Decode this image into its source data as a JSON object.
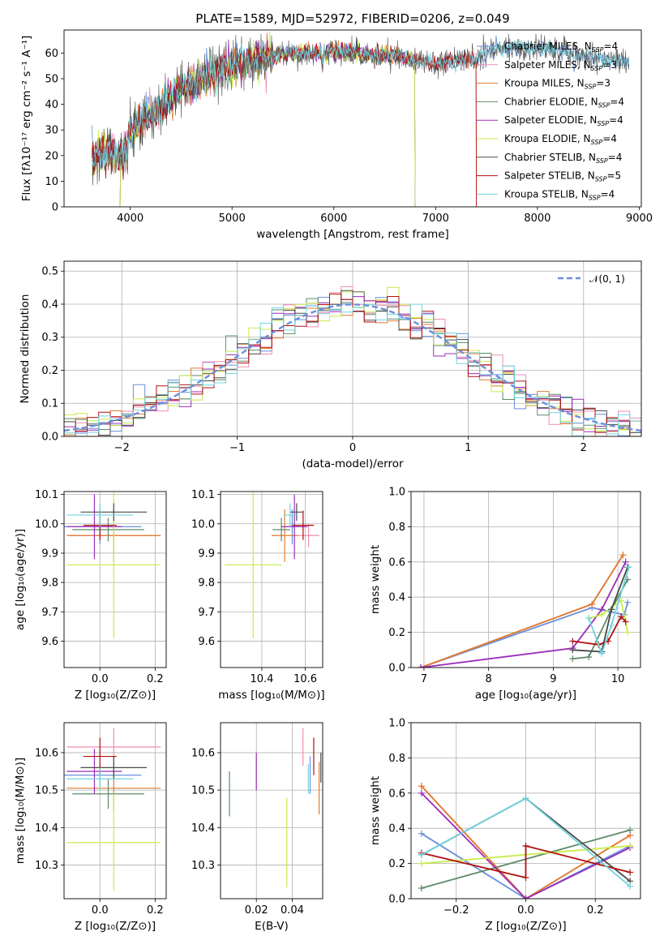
{
  "colors": {
    "chabrier_miles": "#6a8fdc",
    "salpeter_miles": "#f08cb4",
    "kroupa_miles": "#e07c2e",
    "chabrier_elodie": "#5e8a68",
    "salpeter_elodie": "#9b2cb8",
    "kroupa_elodie": "#c8ec4a",
    "chabrier_stelib": "#4a4a4a",
    "salpeter_stelib": "#b01010",
    "kroupa_stelib": "#70d4e0",
    "gaussian": "#6a8fdc"
  },
  "chart_data": [
    {
      "id": "spectrum",
      "type": "line",
      "title": "PLATE=1589, MJD=52972, FIBERID=0206, z=0.049",
      "xlabel": "wavelength [Angstrom, rest frame]",
      "ylabel": "Flux [fλ10⁻¹⁷ erg cm⁻² s⁻¹ A⁻¹]",
      "xlim": [
        3350,
        9020
      ],
      "ylim": [
        0,
        69
      ],
      "xticks": [
        "4000",
        "5000",
        "6000",
        "7000",
        "8000",
        "9000"
      ],
      "yticks": [
        "0",
        "10",
        "20",
        "30",
        "40",
        "50",
        "60"
      ],
      "continuum": {
        "x": [
          3620,
          3700,
          3800,
          3900,
          4000,
          4100,
          4200,
          4300,
          4400,
          4500,
          4600,
          4700,
          4800,
          4900,
          5000,
          5100,
          5200,
          5300,
          5400,
          5600,
          5800,
          6000,
          6200,
          6400,
          6600,
          6800,
          7000,
          7200,
          7400,
          7600,
          7800,
          8000,
          8200,
          8400,
          8600,
          8800
        ],
        "y": [
          18,
          21,
          23,
          19,
          29,
          33,
          36,
          38,
          42,
          46,
          47,
          49,
          52,
          54,
          55,
          56,
          57,
          58,
          59,
          60,
          60,
          61,
          60,
          59,
          59,
          57,
          56,
          57,
          58,
          62,
          62,
          62,
          61,
          59,
          58,
          57
        ]
      },
      "legend": [
        {
          "label": "Chabrier MILES, N",
          "sub": "SSP",
          "n": "=4",
          "color_key": "chabrier_miles"
        },
        {
          "label": "Salpeter MILES, N",
          "sub": "SSP",
          "n": "=3",
          "color_key": "salpeter_miles"
        },
        {
          "label": "Kroupa MILES, N",
          "sub": "SSP",
          "n": "=3",
          "color_key": "kroupa_miles"
        },
        {
          "label": "Chabrier ELODIE, N",
          "sub": "SSP",
          "n": "=4",
          "color_key": "chabrier_elodie"
        },
        {
          "label": "Salpeter ELODIE, N",
          "sub": "SSP",
          "n": "=4",
          "color_key": "salpeter_elodie"
        },
        {
          "label": "Kroupa ELODIE, N",
          "sub": "SSP",
          "n": "=4",
          "color_key": "kroupa_elodie"
        },
        {
          "label": "Chabrier STELIB, N",
          "sub": "SSP",
          "n": "=4",
          "color_key": "chabrier_stelib"
        },
        {
          "label": "Salpeter STELIB, N",
          "sub": "SSP",
          "n": "=5",
          "color_key": "salpeter_stelib"
        },
        {
          "label": "Kroupa STELIB, N",
          "sub": "SSP",
          "n": "=4",
          "color_key": "kroupa_stelib"
        }
      ]
    },
    {
      "id": "residuals",
      "type": "line",
      "xlabel": "(data-model)/error",
      "ylabel": "Normed distribution",
      "xlim": [
        -2.5,
        2.5
      ],
      "ylim": [
        0,
        0.53
      ],
      "xticks": [
        "−2",
        "−1",
        "0",
        "1",
        "2"
      ],
      "yticks": [
        "0.0",
        "0.1",
        "0.2",
        "0.3",
        "0.4",
        "0.5"
      ],
      "legend": "𝒩(0, 1)",
      "bin_width": 0.1,
      "bin_start": -2.5
    },
    {
      "id": "age_vs_Z",
      "type": "scatter",
      "xlabel": "Z [log₁₀(Z/Z⊙)]",
      "ylabel": "age  [log₁₀(age/yr)]",
      "xlim": [
        -0.13,
        0.24
      ],
      "ylim": [
        9.51,
        10.11
      ],
      "xticks": [
        "0.0",
        "0.2"
      ],
      "yticks": [
        "9.6",
        "9.7",
        "9.8",
        "9.9",
        "10.0",
        "10.1"
      ]
    },
    {
      "id": "age_vs_mass",
      "type": "scatter",
      "xlabel": "mass [log₁₀(M/M⊙)]",
      "xlim": [
        10.21,
        10.68
      ],
      "ylim": [
        9.51,
        10.11
      ],
      "xticks": [
        "10.4",
        "10.6"
      ],
      "yticks": [
        "9.6",
        "9.7",
        "9.8",
        "9.9",
        "10.0",
        "10.1"
      ]
    },
    {
      "id": "weight_vs_age",
      "type": "line",
      "xlabel": "age  [log₁₀(age/yr)]",
      "ylabel": "mass weight",
      "xlim": [
        6.8,
        10.35
      ],
      "ylim": [
        0,
        1.0
      ],
      "xticks": [
        "7",
        "8",
        "9",
        "10"
      ],
      "yticks": [
        "0.0",
        "0.2",
        "0.4",
        "0.6",
        "0.8",
        "1.0"
      ],
      "series": [
        {
          "color_key": "chabrier_miles",
          "x": [
            6.95,
            9.6,
            10.1,
            10.15
          ],
          "y": [
            0.0,
            0.34,
            0.3,
            0.37
          ]
        },
        {
          "color_key": "salpeter_miles",
          "x": [
            6.95,
            9.6,
            10.08
          ],
          "y": [
            0.0,
            0.36,
            0.64
          ]
        },
        {
          "color_key": "kroupa_miles",
          "x": [
            6.95,
            9.6,
            10.08
          ],
          "y": [
            0.0,
            0.36,
            0.64
          ]
        },
        {
          "color_key": "chabrier_elodie",
          "x": [
            9.3,
            9.55,
            9.9,
            10.15
          ],
          "y": [
            0.05,
            0.06,
            0.33,
            0.5
          ]
        },
        {
          "color_key": "salpeter_elodie",
          "x": [
            6.95,
            9.3,
            9.75,
            10.12
          ],
          "y": [
            0.0,
            0.11,
            0.33,
            0.6
          ]
        },
        {
          "color_key": "kroupa_elodie",
          "x": [
            9.55,
            9.75,
            10.05,
            10.15
          ],
          "y": [
            0.28,
            0.3,
            0.38,
            0.2
          ]
        },
        {
          "color_key": "chabrier_stelib",
          "x": [
            9.3,
            9.75,
            9.9,
            10.15
          ],
          "y": [
            0.1,
            0.09,
            0.33,
            0.57
          ]
        },
        {
          "color_key": "salpeter_stelib",
          "x": [
            9.3,
            9.7,
            9.85,
            10.05,
            10.12
          ],
          "y": [
            0.15,
            0.13,
            0.15,
            0.29,
            0.26
          ]
        },
        {
          "color_key": "kroupa_stelib",
          "x": [
            9.55,
            9.75,
            9.9,
            10.17
          ],
          "y": [
            0.28,
            0.08,
            0.24,
            0.57
          ]
        }
      ]
    },
    {
      "id": "mass_vs_Z",
      "type": "scatter",
      "xlabel": "Z [log₁₀(Z/Z⊙)]",
      "ylabel": "mass [log₁₀(M/M⊙)]",
      "xlim": [
        -0.13,
        0.24
      ],
      "ylim": [
        10.21,
        10.68
      ],
      "xticks": [
        "0.0",
        "0.2"
      ],
      "yticks": [
        "10.3",
        "10.4",
        "10.5",
        "10.6"
      ]
    },
    {
      "id": "mass_vs_ebv",
      "type": "scatter",
      "xlabel": "E(B-V)",
      "xlim": [
        0.0,
        0.057
      ],
      "ylim": [
        10.21,
        10.68
      ],
      "xticks": [
        "0.02",
        "0.04"
      ],
      "yticks": [
        "10.3",
        "10.4",
        "10.5",
        "10.6"
      ]
    },
    {
      "id": "weight_vs_Z",
      "type": "line",
      "xlabel": "Z [log₁₀(Z/Z⊙)]",
      "ylabel": "mass weight",
      "xlim": [
        -0.33,
        0.33
      ],
      "ylim": [
        0,
        1.0
      ],
      "xticks": [
        "−0.2",
        "0.0",
        "0.2"
      ],
      "yticks": [
        "0.0",
        "0.2",
        "0.4",
        "0.6",
        "0.8",
        "1.0"
      ],
      "series": [
        {
          "color_key": "chabrier_miles",
          "x": [
            -0.3,
            0.0,
            0.3
          ],
          "y": [
            0.37,
            0.0,
            0.3
          ]
        },
        {
          "color_key": "salpeter_miles",
          "x": [
            -0.3,
            0.0,
            0.3
          ],
          "y": [
            0.64,
            0.0,
            0.36
          ]
        },
        {
          "color_key": "kroupa_miles",
          "x": [
            -0.3,
            0.0,
            0.3
          ],
          "y": [
            0.64,
            0.0,
            0.36
          ]
        },
        {
          "color_key": "chabrier_elodie",
          "x": [
            -0.3,
            0.3
          ],
          "y": [
            0.06,
            0.39
          ]
        },
        {
          "color_key": "salpeter_elodie",
          "x": [
            -0.3,
            0.0,
            0.3
          ],
          "y": [
            0.6,
            0.0,
            0.29
          ]
        },
        {
          "color_key": "kroupa_elodie",
          "x": [
            -0.3,
            0.3
          ],
          "y": [
            0.2,
            0.3
          ]
        },
        {
          "color_key": "chabrier_stelib",
          "x": [
            -0.3,
            0.0,
            0.3
          ],
          "y": [
            0.25,
            0.57,
            0.1
          ]
        },
        {
          "color_key": "salpeter_stelib",
          "x": [
            -0.3,
            0.0,
            0.0,
            0.3
          ],
          "y": [
            0.26,
            0.12,
            0.3,
            0.15
          ]
        },
        {
          "color_key": "kroupa_stelib",
          "x": [
            -0.3,
            0.0,
            0.3
          ],
          "y": [
            0.25,
            0.57,
            0.07
          ]
        }
      ]
    }
  ],
  "error_crosses": [
    {
      "color_key": "chabrier_miles",
      "Z": 0.0,
      "Z_err": 0.15,
      "age": 9.99,
      "age_err": 0.06,
      "mass": 10.54,
      "mass_err": 0.03,
      "ebv": 0.05,
      "ebv_err_mass": 0.05
    },
    {
      "color_key": "salpeter_miles",
      "Z": 0.05,
      "Z_err": 0.17,
      "age": 9.96,
      "age_err": 0.04,
      "mass": 10.615,
      "mass_err": 0.05,
      "ebv": 0.046,
      "ebv_err_mass": 0.05
    },
    {
      "color_key": "kroupa_miles",
      "Z": 0.05,
      "Z_err": 0.17,
      "age": 9.96,
      "age_err": 0.09,
      "mass": 10.505,
      "mass_err": 0.06,
      "ebv": 0.055,
      "ebv_err_mass": 0.07
    },
    {
      "color_key": "chabrier_elodie",
      "Z": 0.03,
      "Z_err": 0.13,
      "age": 9.98,
      "age_err": 0.04,
      "mass": 10.49,
      "mass_err": 0.04,
      "ebv": 0.005,
      "ebv_err_mass": 0.06
    },
    {
      "color_key": "salpeter_elodie",
      "Z": -0.02,
      "Z_err": 0.1,
      "age": 9.99,
      "age_err": 0.11,
      "mass": 10.55,
      "mass_err": 0.06,
      "ebv": 0.02,
      "ebv_err_mass": 0.05
    },
    {
      "color_key": "kroupa_elodie",
      "Z": 0.05,
      "Z_err": 0.17,
      "age": 9.86,
      "age_err": 0.25,
      "mass": 10.36,
      "mass_err": 0.13,
      "ebv": 0.037,
      "ebv_err_mass": 0.12
    },
    {
      "color_key": "chabrier_stelib",
      "Z": 0.05,
      "Z_err": 0.12,
      "age": 10.04,
      "age_err": 0.03,
      "mass": 10.56,
      "mass_err": 0.03,
      "ebv": 0.056,
      "ebv_err_mass": 0.04
    },
    {
      "color_key": "salpeter_stelib",
      "Z": 0.0,
      "Z_err": 0.06,
      "age": 9.995,
      "age_err": 0.05,
      "mass": 10.59,
      "mass_err": 0.05,
      "ebv": 0.052,
      "ebv_err_mass": 0.05
    },
    {
      "color_key": "kroupa_stelib",
      "Z": 0.0,
      "Z_err": 0.12,
      "age": 10.03,
      "age_err": 0.04,
      "mass": 10.53,
      "mass_err": 0.03,
      "ebv": 0.049,
      "ebv_err_mass": 0.04
    }
  ]
}
